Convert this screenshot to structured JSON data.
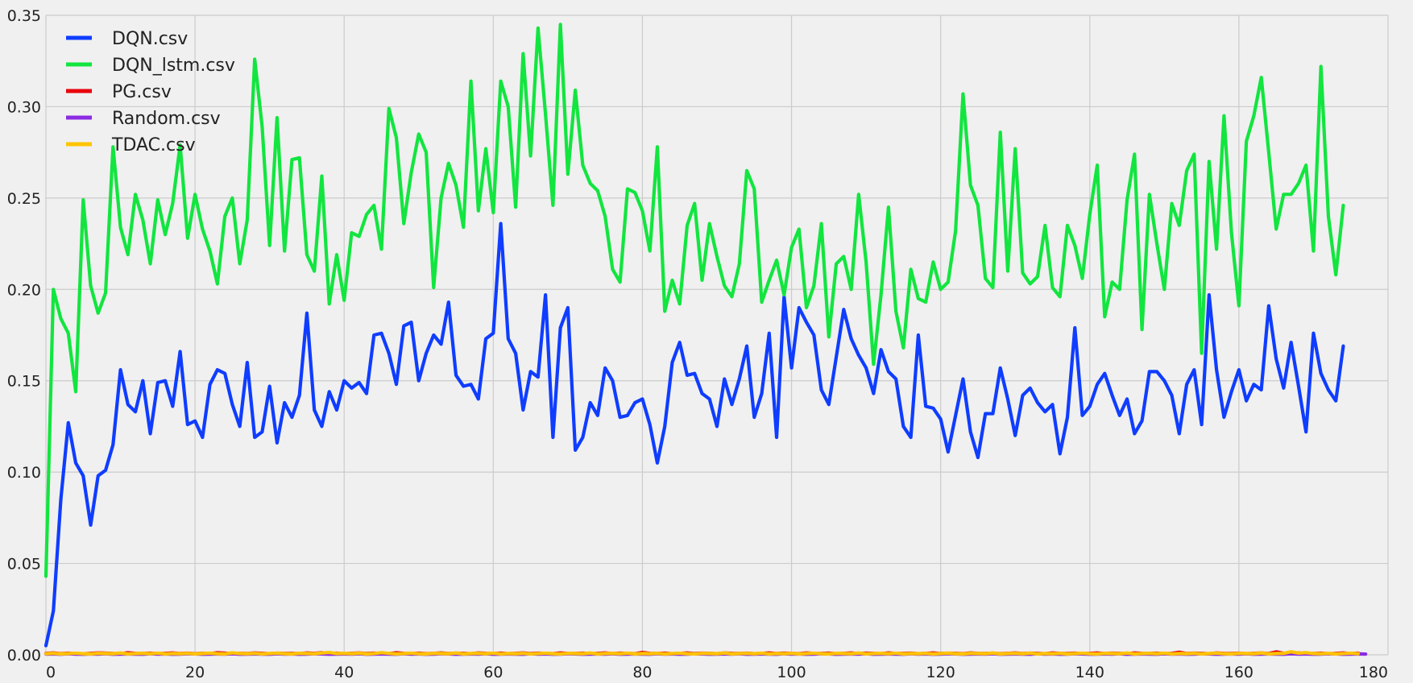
{
  "chart_data": {
    "type": "line",
    "title": "",
    "xlabel": "",
    "ylabel": "",
    "xlim": [
      0,
      180
    ],
    "ylim": [
      0,
      0.35
    ],
    "grid": true,
    "legend_position": "top-left",
    "x_ticks": [
      "0",
      "20",
      "40",
      "60",
      "80",
      "100",
      "120",
      "140",
      "160",
      "180"
    ],
    "y_ticks": [
      "0.00",
      "0.05",
      "0.10",
      "0.15",
      "0.20",
      "0.25",
      "0.30",
      "0.35"
    ],
    "x_tick_values": [
      0,
      20,
      40,
      60,
      80,
      100,
      120,
      140,
      160,
      180
    ],
    "y_tick_values": [
      0,
      0.05,
      0.1,
      0.15,
      0.2,
      0.25,
      0.3,
      0.35
    ],
    "series": [
      {
        "name": "DQN.csv",
        "color": "#0f3dff",
        "values": [
          0.005,
          0.024,
          0.085,
          0.127,
          0.105,
          0.098,
          0.071,
          0.098,
          0.101,
          0.115,
          0.156,
          0.137,
          0.133,
          0.15,
          0.121,
          0.149,
          0.15,
          0.136,
          0.166,
          0.126,
          0.128,
          0.119,
          0.148,
          0.156,
          0.154,
          0.137,
          0.125,
          0.16,
          0.119,
          0.122,
          0.147,
          0.116,
          0.138,
          0.13,
          0.142,
          0.187,
          0.134,
          0.125,
          0.144,
          0.134,
          0.15,
          0.146,
          0.149,
          0.143,
          0.175,
          0.176,
          0.165,
          0.148,
          0.18,
          0.182,
          0.15,
          0.165,
          0.175,
          0.17,
          0.193,
          0.153,
          0.147,
          0.148,
          0.14,
          0.173,
          0.176,
          0.236,
          0.173,
          0.165,
          0.134,
          0.155,
          0.152,
          0.197,
          0.119,
          0.179,
          0.19,
          0.112,
          0.119,
          0.138,
          0.131,
          0.157,
          0.15,
          0.13,
          0.131,
          0.138,
          0.14,
          0.126,
          0.105,
          0.125,
          0.16,
          0.171,
          0.153,
          0.154,
          0.143,
          0.14,
          0.125,
          0.151,
          0.137,
          0.151,
          0.169,
          0.13,
          0.143,
          0.176,
          0.119,
          0.196,
          0.157,
          0.19,
          0.182,
          0.175,
          0.145,
          0.137,
          0.163,
          0.189,
          0.173,
          0.164,
          0.157,
          0.143,
          0.167,
          0.155,
          0.151,
          0.125,
          0.119,
          0.175,
          0.136,
          0.135,
          0.129,
          0.111,
          0.131,
          0.151,
          0.122,
          0.108,
          0.132,
          0.132,
          0.157,
          0.14,
          0.12,
          0.142,
          0.146,
          0.138,
          0.133,
          0.137,
          0.11,
          0.13,
          0.179,
          0.131,
          0.136,
          0.148,
          0.154,
          0.142,
          0.131,
          0.14,
          0.121,
          0.128,
          0.155,
          0.155,
          0.15,
          0.142,
          0.121,
          0.148,
          0.156,
          0.126,
          0.197,
          0.156,
          0.13,
          0.144,
          0.156,
          0.139,
          0.148,
          0.145,
          0.191,
          0.162,
          0.146,
          0.171,
          0.147,
          0.122,
          0.176,
          0.154,
          0.145,
          0.139,
          0.169
        ]
      },
      {
        "name": "DQN_lstm.csv",
        "color": "#12e53f",
        "values": [
          0.043,
          0.2,
          0.184,
          0.176,
          0.144,
          0.249,
          0.202,
          0.187,
          0.198,
          0.278,
          0.234,
          0.219,
          0.252,
          0.238,
          0.214,
          0.249,
          0.23,
          0.247,
          0.279,
          0.228,
          0.252,
          0.233,
          0.221,
          0.203,
          0.24,
          0.25,
          0.214,
          0.238,
          0.326,
          0.289,
          0.224,
          0.294,
          0.221,
          0.271,
          0.272,
          0.219,
          0.21,
          0.262,
          0.192,
          0.219,
          0.194,
          0.231,
          0.229,
          0.241,
          0.246,
          0.222,
          0.299,
          0.283,
          0.236,
          0.264,
          0.285,
          0.275,
          0.201,
          0.25,
          0.269,
          0.257,
          0.234,
          0.314,
          0.243,
          0.277,
          0.242,
          0.314,
          0.3,
          0.245,
          0.329,
          0.273,
          0.343,
          0.296,
          0.246,
          0.345,
          0.263,
          0.309,
          0.268,
          0.258,
          0.254,
          0.24,
          0.211,
          0.204,
          0.255,
          0.253,
          0.243,
          0.221,
          0.278,
          0.188,
          0.205,
          0.192,
          0.235,
          0.247,
          0.205,
          0.236,
          0.218,
          0.202,
          0.196,
          0.214,
          0.265,
          0.255,
          0.193,
          0.205,
          0.216,
          0.197,
          0.223,
          0.233,
          0.19,
          0.202,
          0.236,
          0.174,
          0.214,
          0.218,
          0.2,
          0.252,
          0.215,
          0.159,
          0.197,
          0.245,
          0.188,
          0.168,
          0.211,
          0.195,
          0.193,
          0.215,
          0.2,
          0.204,
          0.232,
          0.307,
          0.257,
          0.246,
          0.206,
          0.201,
          0.286,
          0.21,
          0.277,
          0.209,
          0.203,
          0.207,
          0.235,
          0.201,
          0.196,
          0.235,
          0.224,
          0.206,
          0.241,
          0.268,
          0.185,
          0.204,
          0.2,
          0.249,
          0.274,
          0.178,
          0.252,
          0.225,
          0.2,
          0.247,
          0.235,
          0.265,
          0.274,
          0.165,
          0.27,
          0.222,
          0.295,
          0.231,
          0.191,
          0.281,
          0.295,
          0.316,
          0.275,
          0.233,
          0.252,
          0.252,
          0.258,
          0.268,
          0.221,
          0.322,
          0.24,
          0.208,
          0.246
        ]
      },
      {
        "name": "PG.csv",
        "color": "#e8000b",
        "values": [
          0.0008,
          0.001,
          0.0006,
          0.0009,
          0.0007,
          0.0005,
          0.0008,
          0.001,
          0.0009,
          0.0007,
          0.0006,
          0.0011,
          0.0008,
          0.0007,
          0.0009,
          0.0006,
          0.0008,
          0.001,
          0.0007,
          0.0009,
          0.0006,
          0.0008,
          0.0007,
          0.0011,
          0.0009,
          0.0006,
          0.0008,
          0.0007,
          0.001,
          0.0008,
          0.0006,
          0.0009,
          0.0007,
          0.0008,
          0.0006,
          0.001,
          0.0008,
          0.0012,
          0.0007,
          0.0009,
          0.0006,
          0.0008,
          0.001,
          0.0007,
          0.0009,
          0.0008,
          0.0006,
          0.0011,
          0.0008,
          0.0007,
          0.0009,
          0.0006,
          0.0008,
          0.001,
          0.0007,
          0.0009,
          0.0008,
          0.0006,
          0.001,
          0.0008,
          0.0007,
          0.0009,
          0.0006,
          0.0008,
          0.001,
          0.0007,
          0.0009,
          0.0008,
          0.0006,
          0.001,
          0.0008,
          0.0007,
          0.0009,
          0.0006,
          0.0008,
          0.001,
          0.0007,
          0.0009,
          0.0008,
          0.0006,
          0.0013,
          0.0008,
          0.0007,
          0.0009,
          0.0006,
          0.0008,
          0.001,
          0.0007,
          0.0009,
          0.0008,
          0.0006,
          0.001,
          0.0008,
          0.0007,
          0.0009,
          0.0006,
          0.0008,
          0.001,
          0.0007,
          0.0009,
          0.0008,
          0.0006,
          0.001,
          0.0008,
          0.0007,
          0.0009,
          0.0006,
          0.0008,
          0.001,
          0.0007,
          0.0009,
          0.0008,
          0.0006,
          0.001,
          0.0008,
          0.0007,
          0.0009,
          0.0006,
          0.0008,
          0.001,
          0.0007,
          0.0009,
          0.0008,
          0.0006,
          0.001,
          0.0008,
          0.0007,
          0.0009,
          0.0006,
          0.0008,
          0.001,
          0.0007,
          0.0009,
          0.0008,
          0.0006,
          0.001,
          0.0008,
          0.0007,
          0.0009,
          0.0006,
          0.0008,
          0.001,
          0.0007,
          0.0009,
          0.0008,
          0.0006,
          0.001,
          0.0008,
          0.0007,
          0.0009,
          0.0006,
          0.0008,
          0.0014,
          0.0007,
          0.0009,
          0.0008,
          0.0006,
          0.001,
          0.0008,
          0.0007,
          0.0009,
          0.0006,
          0.0008,
          0.001,
          0.0007,
          0.0016,
          0.0008,
          0.0006,
          0.001,
          0.0008,
          0.0007,
          0.0009,
          0.0006,
          0.0008,
          0.001,
          0.0007,
          0.0009
        ]
      },
      {
        "name": "Random.csv",
        "color": "#8b2be2",
        "values": [
          0.0004,
          0.0005,
          0.0003,
          0.0006,
          0.0004,
          0.0003,
          0.0005,
          0.0004,
          0.0006,
          0.0003,
          0.0004,
          0.0005,
          0.0004,
          0.0003,
          0.0006,
          0.0004,
          0.0005,
          0.0003,
          0.0004,
          0.0006,
          0.0005,
          0.0003,
          0.0004,
          0.0005,
          0.0004,
          0.0006,
          0.0003,
          0.0004,
          0.0005,
          0.0004,
          0.0003,
          0.0006,
          0.0004,
          0.0005,
          0.0003,
          0.0004,
          0.0006,
          0.0005,
          0.0003,
          0.0004,
          0.0005,
          0.0004,
          0.0006,
          0.0003,
          0.0004,
          0.0005,
          0.0004,
          0.0003,
          0.0006,
          0.0004,
          0.0005,
          0.0003,
          0.0004,
          0.0006,
          0.0005,
          0.0003,
          0.0004,
          0.0005,
          0.0004,
          0.0006,
          0.0003,
          0.0004,
          0.0005,
          0.0004,
          0.0003,
          0.0006,
          0.0004,
          0.0005,
          0.0003,
          0.0004,
          0.0006,
          0.0005,
          0.0003,
          0.0004,
          0.0005,
          0.0004,
          0.0006,
          0.0003,
          0.0004,
          0.0005,
          0.0004,
          0.0003,
          0.0006,
          0.0004,
          0.0005,
          0.0003,
          0.0004,
          0.0006,
          0.0005,
          0.0003,
          0.0004,
          0.0005,
          0.0004,
          0.0006,
          0.0003,
          0.0004,
          0.0005,
          0.0004,
          0.0003,
          0.0006,
          0.0004,
          0.0005,
          0.0003,
          0.0004,
          0.0006,
          0.0005,
          0.0003,
          0.0004,
          0.0005,
          0.0004,
          0.0006,
          0.0003,
          0.0004,
          0.0005,
          0.0004,
          0.0003,
          0.0006,
          0.0004,
          0.0005,
          0.0003,
          0.0004,
          0.0006,
          0.0005,
          0.0003,
          0.0004,
          0.0005,
          0.0004,
          0.0006,
          0.0003,
          0.0004,
          0.0005,
          0.0004,
          0.0003,
          0.0006,
          0.0004,
          0.0005,
          0.0003,
          0.0004,
          0.0006,
          0.0005,
          0.0003,
          0.0004,
          0.0005,
          0.0004,
          0.0006,
          0.0003,
          0.0004,
          0.0005,
          0.0004,
          0.0003,
          0.0006,
          0.0004,
          0.0005,
          0.0003,
          0.0004,
          0.0006,
          0.0005,
          0.0003,
          0.0004,
          0.0005,
          0.0004,
          0.0006,
          0.0003,
          0.0004,
          0.0005,
          0.0004,
          0.0003,
          0.0006,
          0.0004,
          0.0005,
          0.0003,
          0.0004,
          0.0006,
          0.0005,
          0.0003,
          0.0004,
          0.0005,
          0.0004
        ]
      },
      {
        "name": "TDAC.csv",
        "color": "#ffc400",
        "values": [
          0.0006,
          0.0008,
          0.0005,
          0.0007,
          0.0009,
          0.0006,
          0.0005,
          0.0008,
          0.0007,
          0.0006,
          0.001,
          0.0005,
          0.0007,
          0.0008,
          0.0006,
          0.0009,
          0.0005,
          0.0007,
          0.0006,
          0.0008,
          0.0005,
          0.0007,
          0.0009,
          0.0006,
          0.0005,
          0.0011,
          0.0007,
          0.0006,
          0.0008,
          0.0005,
          0.0007,
          0.0009,
          0.0006,
          0.0005,
          0.0008,
          0.0007,
          0.0006,
          0.001,
          0.0013,
          0.0007,
          0.0008,
          0.0006,
          0.0009,
          0.0005,
          0.0007,
          0.0012,
          0.0008,
          0.0005,
          0.0007,
          0.0009,
          0.0006,
          0.0005,
          0.0008,
          0.0007,
          0.0006,
          0.001,
          0.0005,
          0.0007,
          0.0008,
          0.0006,
          0.0009,
          0.0005,
          0.0007,
          0.0006,
          0.0008,
          0.0005,
          0.0007,
          0.0009,
          0.0006,
          0.0005,
          0.0008,
          0.0007,
          0.0006,
          0.001,
          0.0005,
          0.0007,
          0.0008,
          0.0006,
          0.0009,
          0.0005,
          0.0007,
          0.0006,
          0.0008,
          0.0005,
          0.0007,
          0.0009,
          0.0006,
          0.0005,
          0.0008,
          0.0007,
          0.0006,
          0.001,
          0.0005,
          0.0007,
          0.0008,
          0.0006,
          0.0009,
          0.0005,
          0.0007,
          0.0006,
          0.0008,
          0.0005,
          0.0007,
          0.0009,
          0.0006,
          0.0005,
          0.0008,
          0.0007,
          0.0006,
          0.001,
          0.0005,
          0.0007,
          0.0008,
          0.0006,
          0.0009,
          0.0005,
          0.0007,
          0.0006,
          0.0008,
          0.0005,
          0.0007,
          0.0009,
          0.0006,
          0.0005,
          0.0008,
          0.0007,
          0.0006,
          0.001,
          0.0005,
          0.0007,
          0.0008,
          0.0006,
          0.0009,
          0.0005,
          0.0007,
          0.0006,
          0.0008,
          0.0005,
          0.0007,
          0.0009,
          0.0006,
          0.0005,
          0.0008,
          0.0007,
          0.0006,
          0.001,
          0.0005,
          0.0007,
          0.0008,
          0.0006,
          0.0009,
          0.0005,
          0.0007,
          0.0006,
          0.0008,
          0.0005,
          0.0007,
          0.0009,
          0.0006,
          0.0005,
          0.0008,
          0.0007,
          0.0006,
          0.001,
          0.0005,
          0.0007,
          0.0008,
          0.0017,
          0.0009,
          0.0012,
          0.0007,
          0.0006,
          0.0008,
          0.0005,
          0.0007,
          0.0009,
          0.0006
        ]
      }
    ]
  }
}
